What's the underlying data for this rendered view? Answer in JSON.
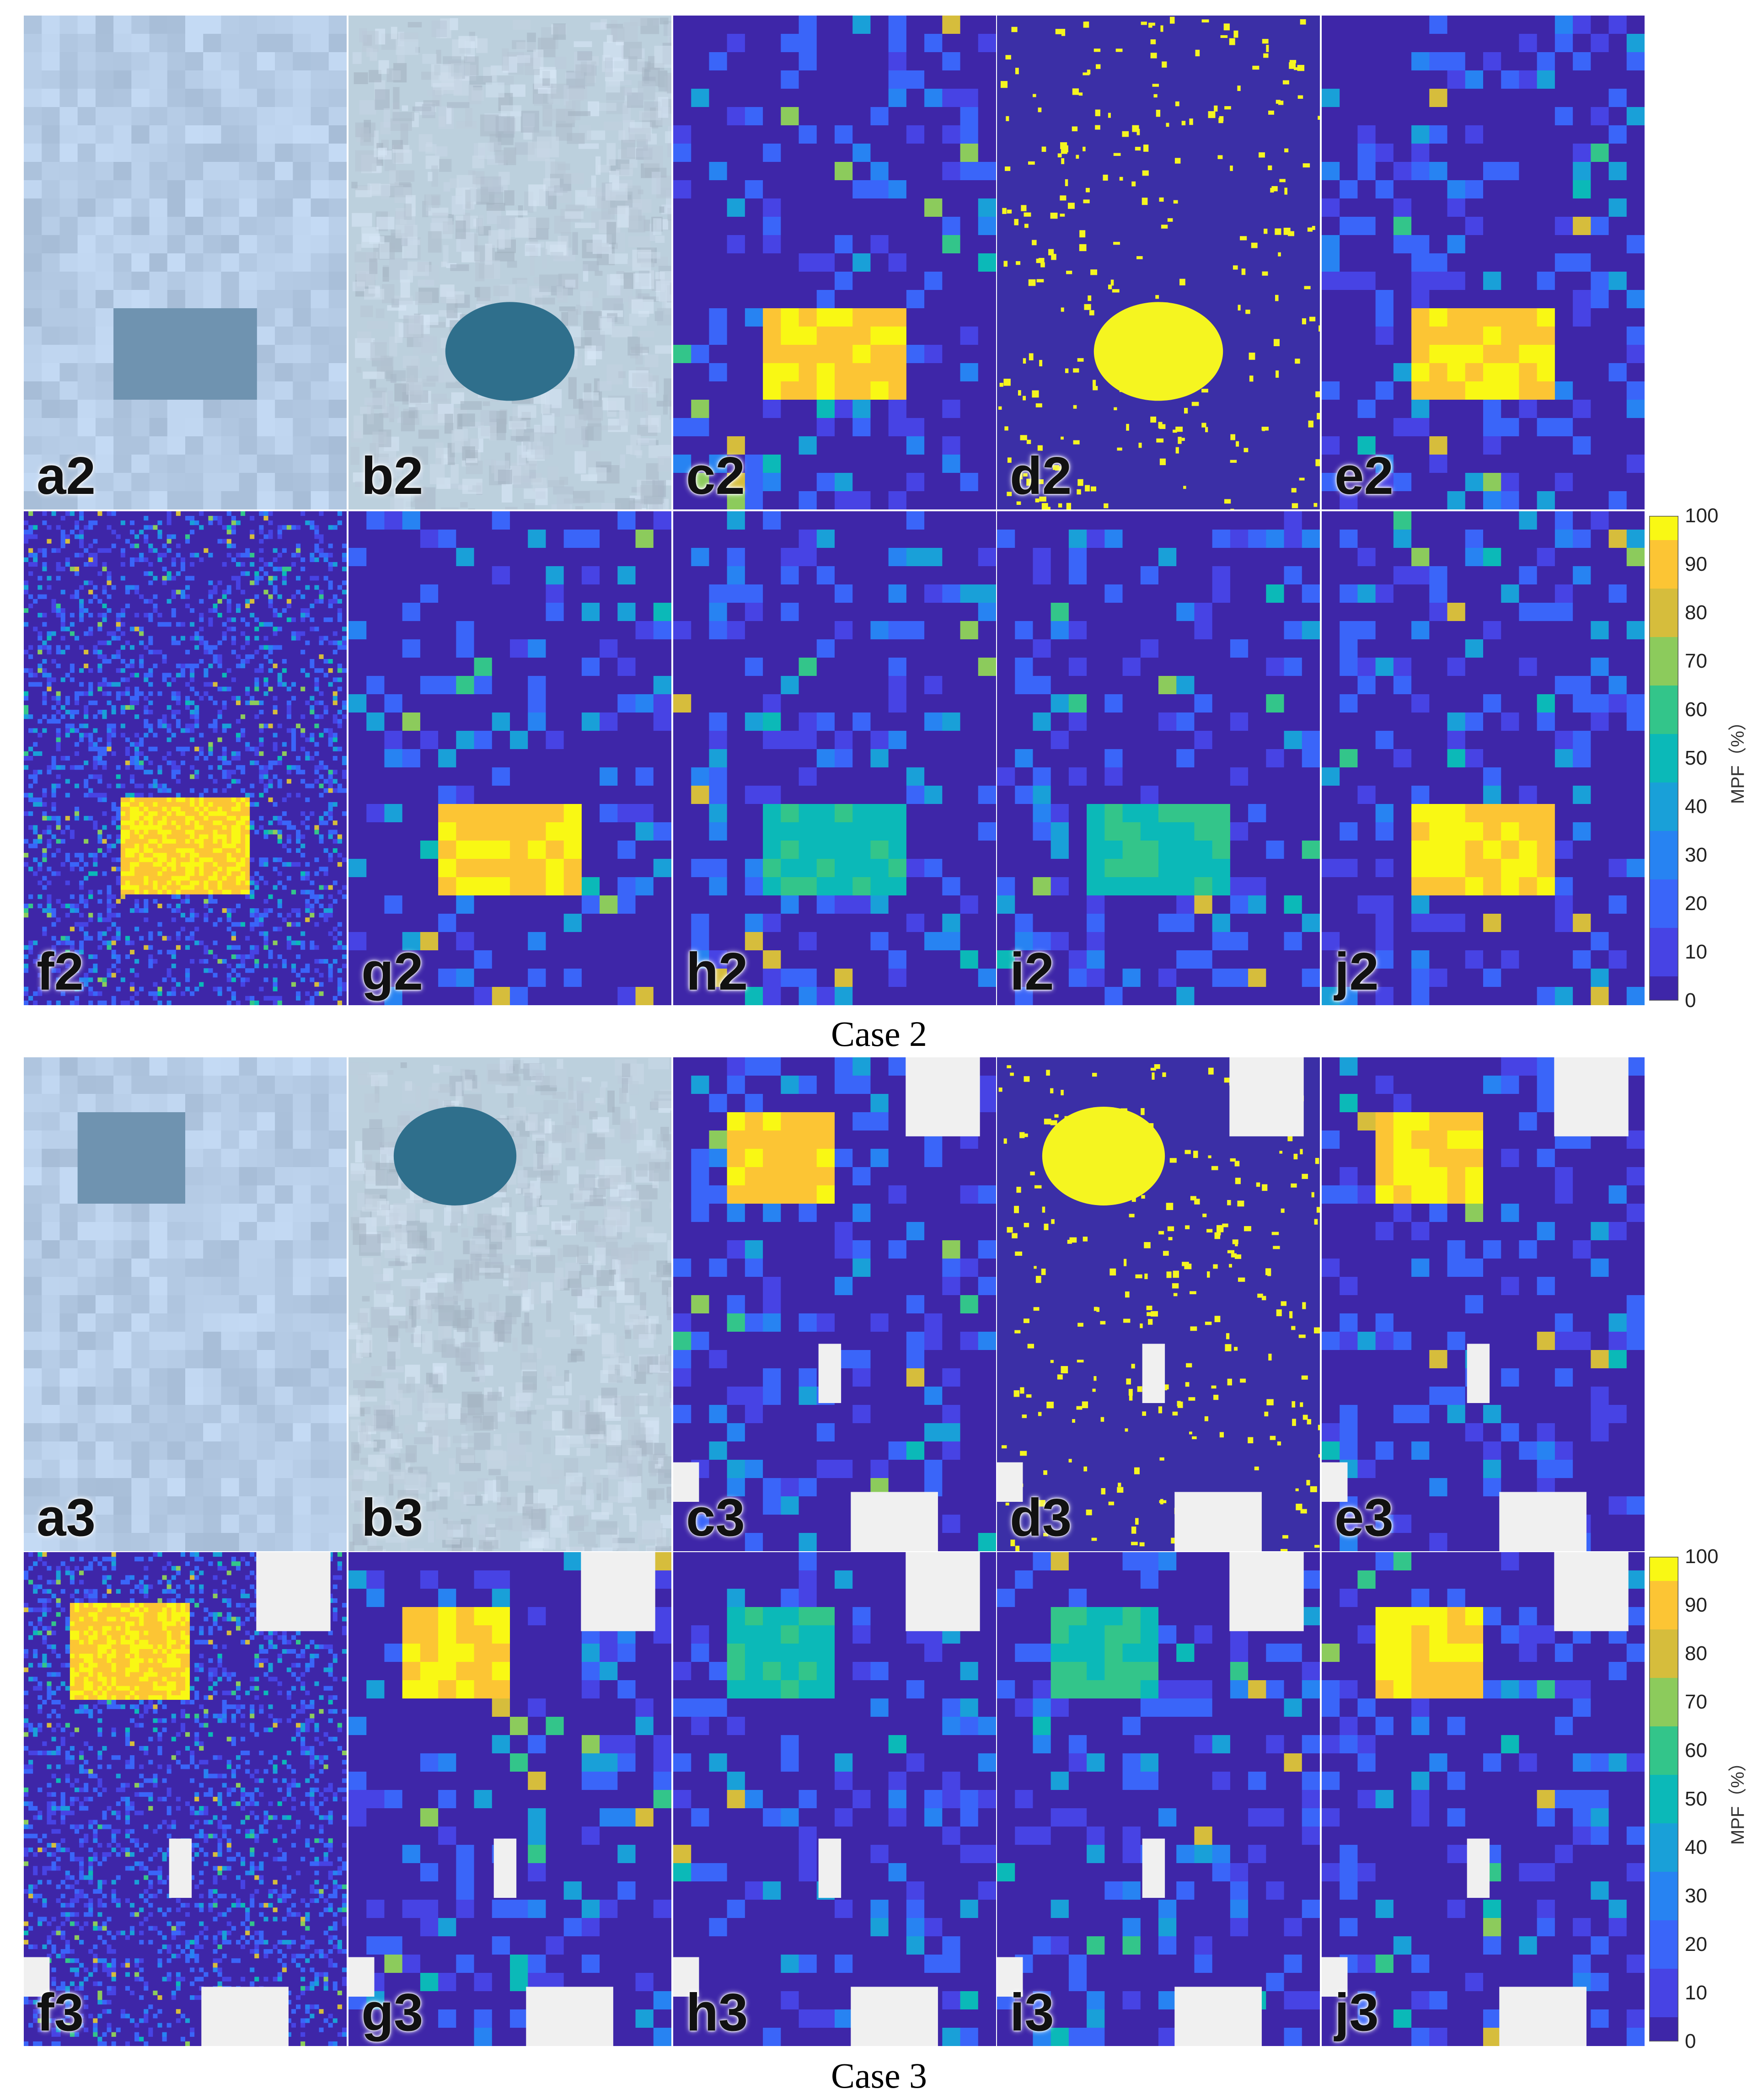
{
  "figure": {
    "cases": [
      {
        "caption": "Case 2",
        "colorbar_label": "MPF（%）",
        "colorbar_ticks": [
          "100",
          "90",
          "80",
          "70",
          "60",
          "50",
          "40",
          "30",
          "20",
          "10",
          "0"
        ],
        "panels": [
          {
            "label": "a2",
            "kind": "coarse-rgb"
          },
          {
            "label": "b2",
            "kind": "photo"
          },
          {
            "label": "c2",
            "kind": "mpf-coarse"
          },
          {
            "label": "d2",
            "kind": "binary-fine"
          },
          {
            "label": "e2",
            "kind": "mpf-coarse"
          },
          {
            "label": "f2",
            "kind": "mpf-fine"
          },
          {
            "label": "g2",
            "kind": "mpf-coarse"
          },
          {
            "label": "h2",
            "kind": "mpf-coarse-mid"
          },
          {
            "label": "i2",
            "kind": "mpf-coarse-mid"
          },
          {
            "label": "j2",
            "kind": "mpf-coarse"
          }
        ]
      },
      {
        "caption": "Case 3",
        "colorbar_label": "MPF（%）",
        "colorbar_ticks": [
          "100",
          "90",
          "80",
          "70",
          "60",
          "50",
          "40",
          "30",
          "20",
          "10",
          "0"
        ],
        "panels": [
          {
            "label": "a3",
            "kind": "coarse-rgb"
          },
          {
            "label": "b3",
            "kind": "photo"
          },
          {
            "label": "c3",
            "kind": "mpf-coarse"
          },
          {
            "label": "d3",
            "kind": "binary-fine"
          },
          {
            "label": "e3",
            "kind": "mpf-coarse"
          },
          {
            "label": "f3",
            "kind": "mpf-fine"
          },
          {
            "label": "g3",
            "kind": "mpf-coarse"
          },
          {
            "label": "h3",
            "kind": "mpf-coarse-mid"
          },
          {
            "label": "i3",
            "kind": "mpf-coarse-mid"
          },
          {
            "label": "j3",
            "kind": "mpf-coarse"
          }
        ]
      }
    ],
    "colormap": [
      "#3e26a8",
      "#4743e4",
      "#3a65f9",
      "#2783f2",
      "#19a0d8",
      "#0bb9b8",
      "#33c58a",
      "#8ccb5c",
      "#d6bd3c",
      "#fcc534",
      "#f9f814"
    ],
    "background_color": "#3b2fa6",
    "ice_color": "#b8cfe0",
    "masked_color": "#f0f0f0",
    "binary_pond_color": "#f5f520"
  }
}
